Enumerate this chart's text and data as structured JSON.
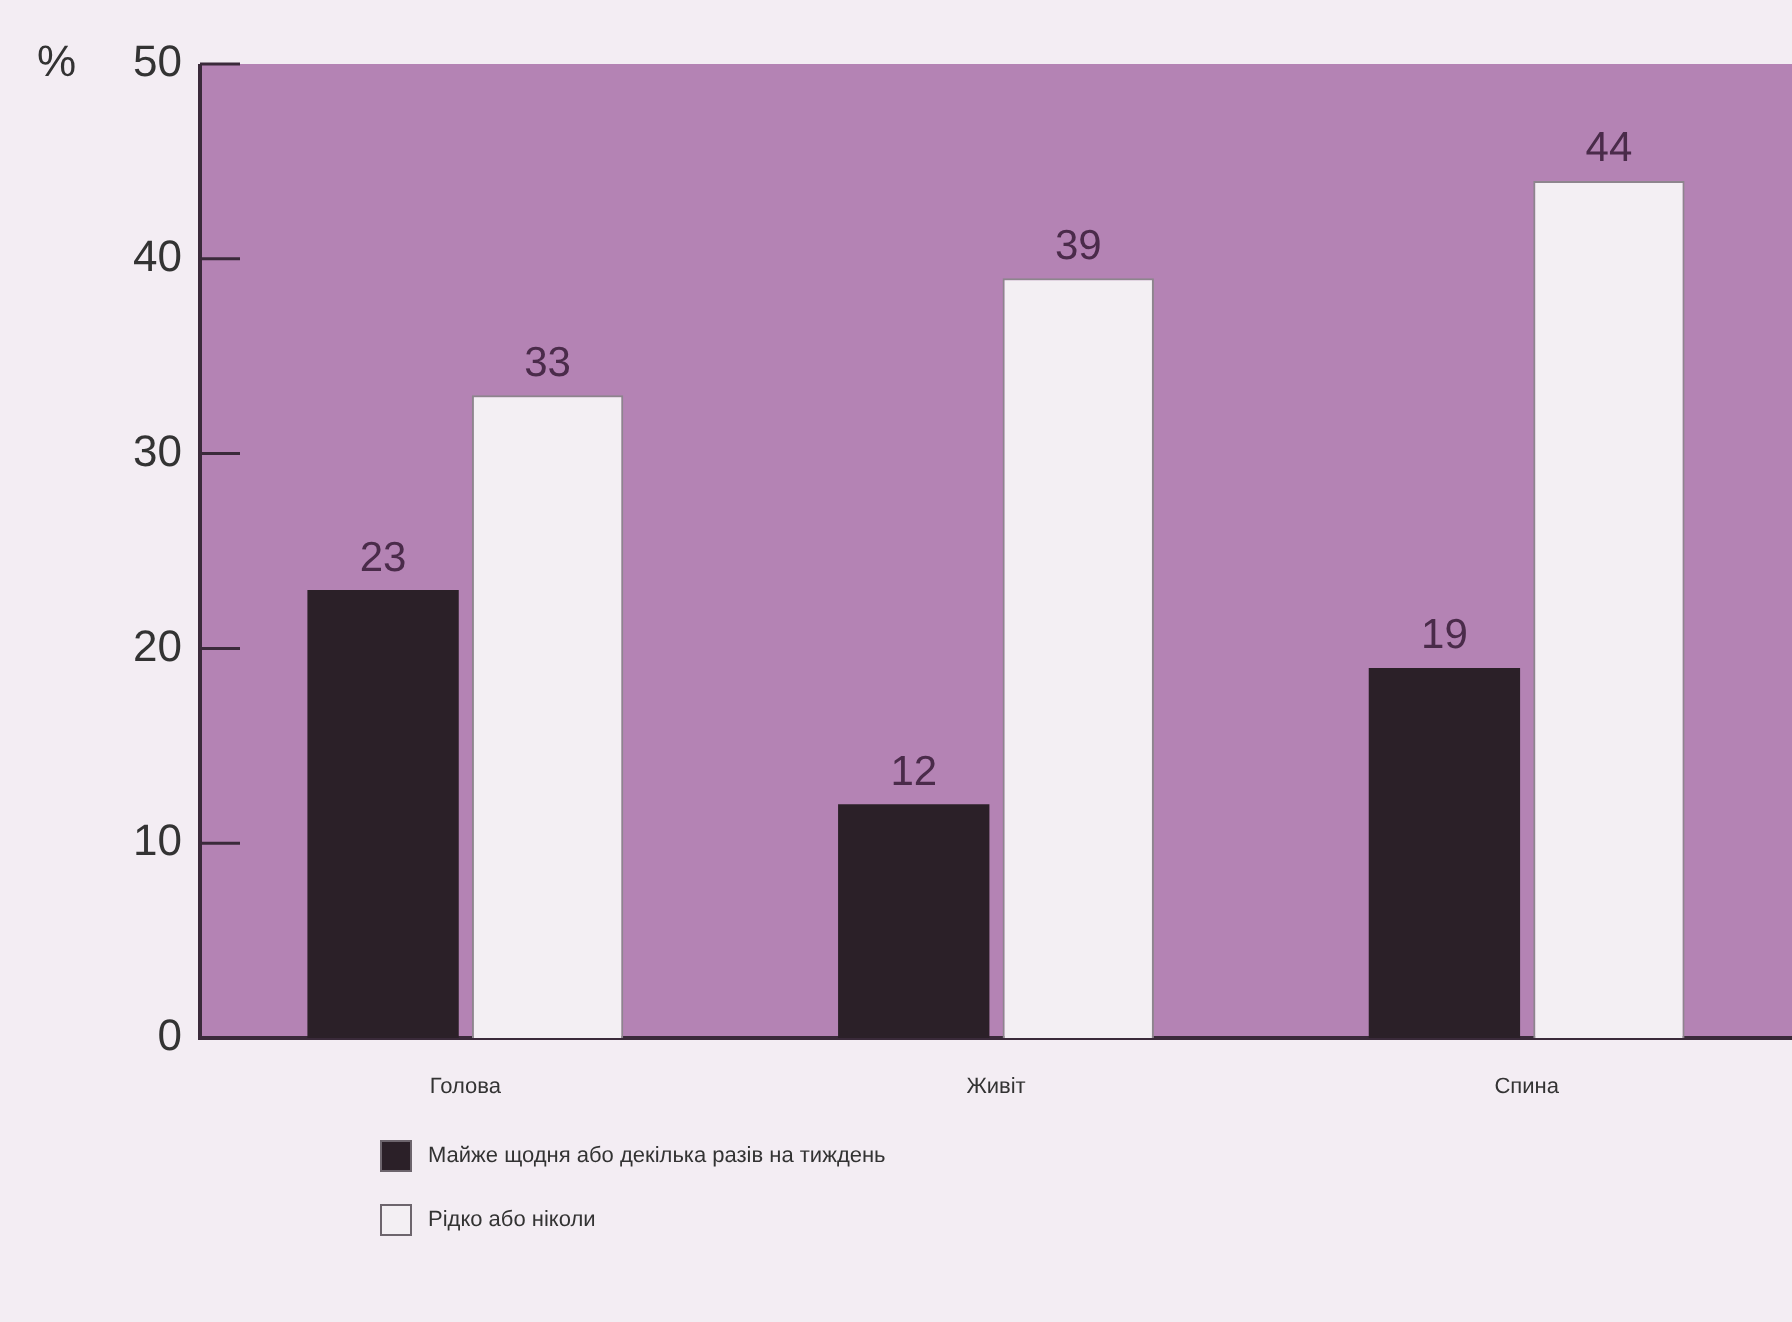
{
  "chart_data": {
    "type": "bar",
    "ylabel": "%",
    "categories": [
      "Голова",
      "Живіт",
      "Спина"
    ],
    "series": [
      {
        "name": "Майже щодня або декілька разів на тиждень",
        "color": "#2b2028",
        "values": [
          23,
          12,
          19
        ]
      },
      {
        "name": "Рідко або ніколи",
        "color": "#f3eff3",
        "values": [
          33,
          39,
          44
        ]
      }
    ],
    "ylim": [
      0,
      50
    ],
    "yticks": [
      0,
      10,
      20,
      30,
      40,
      50
    ],
    "grid": false,
    "legend": "bottom",
    "data_labels": true
  }
}
